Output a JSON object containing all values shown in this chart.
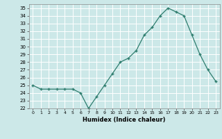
{
  "x": [
    0,
    1,
    2,
    3,
    4,
    5,
    6,
    7,
    8,
    9,
    10,
    11,
    12,
    13,
    14,
    15,
    16,
    17,
    18,
    19,
    20,
    21,
    22,
    23
  ],
  "y": [
    25.0,
    24.5,
    24.5,
    24.5,
    24.5,
    24.5,
    24.0,
    22.0,
    23.5,
    25.0,
    26.5,
    28.0,
    28.5,
    29.5,
    31.5,
    32.5,
    34.0,
    35.0,
    34.5,
    34.0,
    31.5,
    29.0,
    27.0,
    25.5
  ],
  "xlabel": "Humidex (Indice chaleur)",
  "ylim": [
    22,
    35.5
  ],
  "xlim": [
    -0.5,
    23.5
  ],
  "yticks": [
    22,
    23,
    24,
    25,
    26,
    27,
    28,
    29,
    30,
    31,
    32,
    33,
    34,
    35
  ],
  "xticks": [
    0,
    1,
    2,
    3,
    4,
    5,
    6,
    7,
    8,
    9,
    10,
    11,
    12,
    13,
    14,
    15,
    16,
    17,
    18,
    19,
    20,
    21,
    22,
    23
  ],
  "line_color": "#2e7d6e",
  "marker": "+",
  "bg_color": "#cce8e8",
  "grid_color": "#ffffff",
  "spine_color": "#888888",
  "tick_color": "#444444",
  "label_color": "#000000"
}
